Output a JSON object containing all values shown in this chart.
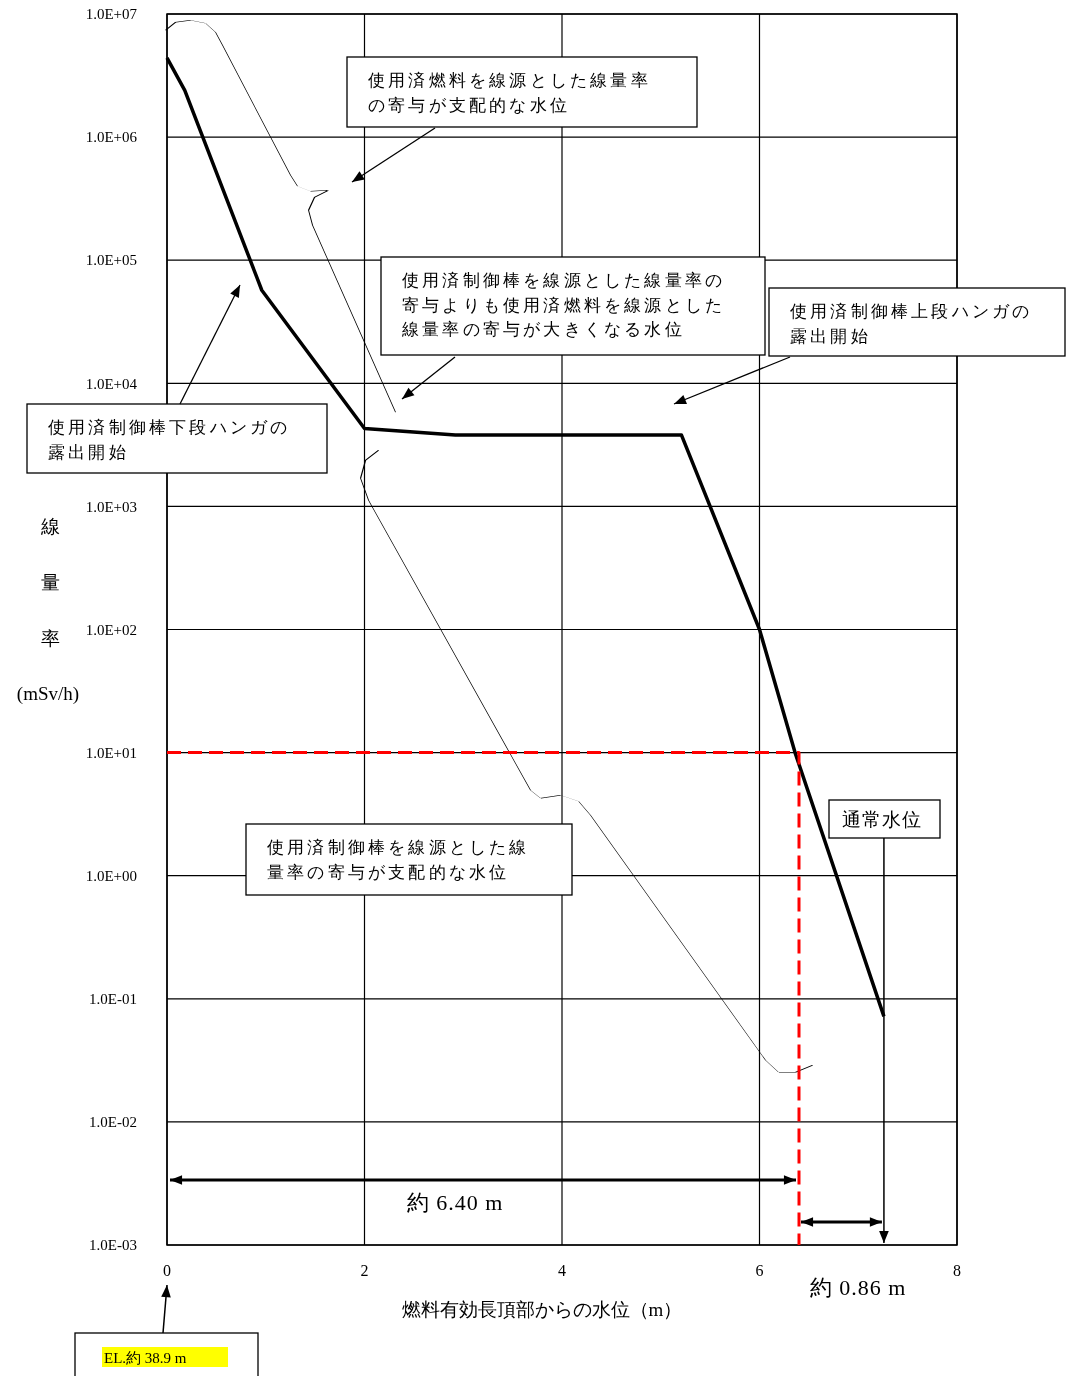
{
  "chart_data": {
    "type": "line",
    "xlabel": "燃料有効長頂部からの水位（m）",
    "ylabel": "線量率(mSv/h)",
    "log": "y",
    "grid": true,
    "xlim": [
      0,
      8
    ],
    "xticks": [
      0,
      2,
      4,
      6,
      8
    ],
    "ylim": [
      0.001,
      10000000
    ],
    "yticks": [
      {
        "value": 0.001,
        "label": "1.0E-03"
      },
      {
        "value": 0.01,
        "label": "1.0E-02"
      },
      {
        "value": 0.1,
        "label": "1.0E-01"
      },
      {
        "value": 1,
        "label": "1.0E+00"
      },
      {
        "value": 10,
        "label": "1.0E+01"
      },
      {
        "value": 100,
        "label": "1.0E+02"
      },
      {
        "value": 1000,
        "label": "1.0E+03"
      },
      {
        "value": 10000,
        "label": "1.0E+04"
      },
      {
        "value": 100000,
        "label": "1.0E+05"
      },
      {
        "value": 1000000,
        "label": "1.0E+06"
      },
      {
        "value": 10000000,
        "label": "1.0E+07"
      }
    ],
    "series": [
      {
        "color": "#000000",
        "x": [
          0,
          0.18,
          0.96,
          2.0,
          2.92,
          5.21,
          6.0,
          6.36,
          7.26
        ],
        "values": [
          4400000,
          2400000,
          57000,
          4300,
          3800,
          3800,
          100,
          10,
          0.072
        ]
      },
      {
        "color": "#ff0000",
        "line_style": "dashed",
        "x": [
          0,
          6.4,
          6.4
        ],
        "values": [
          10,
          10,
          0.001
        ]
      }
    ],
    "annotations": [
      "使用済燃料を線源とした線量率の寄与が支配的な水位",
      "使用済制御棒を線源とした線量率の寄与よりも使用済燃料を線源とした線量率の寄与が大きくなる水位",
      "使用済制御棒上段ハンガの露出開始",
      "使用済制御棒下段ハンガの露出開始",
      "使用済制御棒を線源とした線量率の寄与が支配的な水位",
      "通常水位",
      "約 6.40 m",
      "約 0.86 m",
      "EL.約 38.9 m"
    ]
  }
}
